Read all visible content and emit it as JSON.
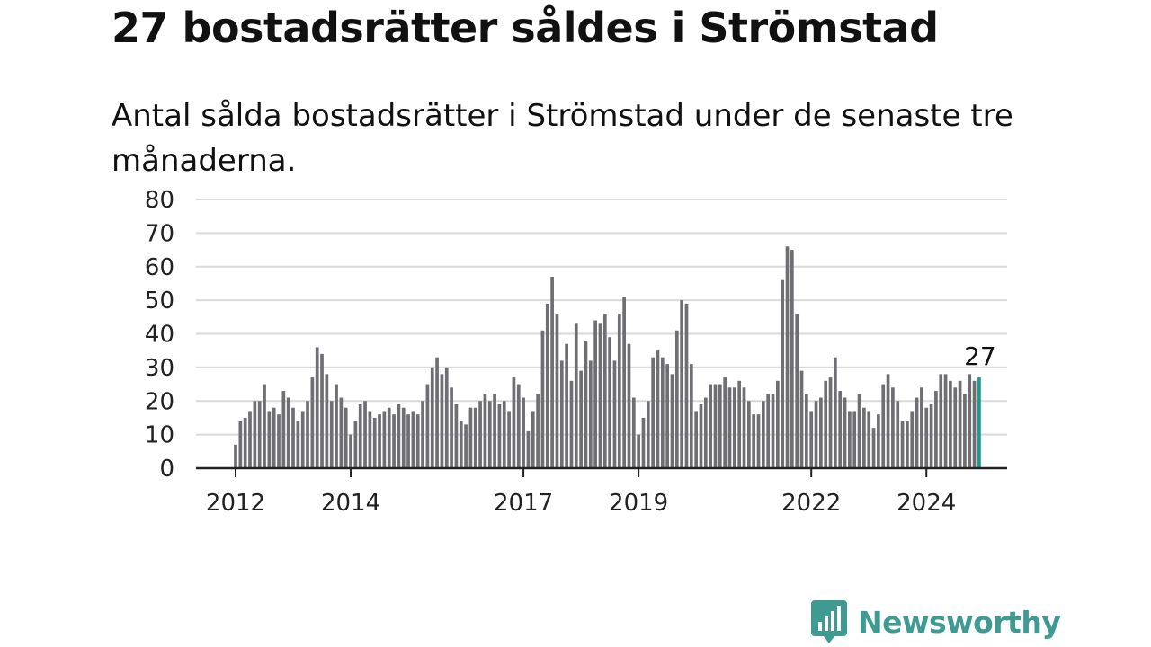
{
  "header": {
    "title": "27 bostadsrätter såldes i Strömstad",
    "subtitle": "Antal sålda bostadsrätter i Strömstad under de senaste tre månaderna."
  },
  "brand": {
    "name": "Newsworthy",
    "logo_icon": "bar-chart-speech-bubble-icon"
  },
  "colors": {
    "bar": "#6f6e73",
    "highlight": "#1a9a8f",
    "grid": "#d9d9d9",
    "axis": "#222222",
    "brand": "#3f9a92"
  },
  "chart_data": {
    "type": "bar",
    "title": "27 bostadsrätter såldes i Strömstad",
    "subtitle": "Antal sålda bostadsrätter i Strömstad under de senaste tre månaderna.",
    "xlabel": "",
    "ylabel": "",
    "ylim": [
      0,
      80
    ],
    "y_ticks": [
      0,
      10,
      20,
      30,
      40,
      50,
      60,
      70,
      80
    ],
    "grid": true,
    "x_tick_labels": [
      "2012",
      "2014",
      "2017",
      "2019",
      "2022",
      "2024"
    ],
    "x_tick_label_bar_index": [
      0,
      24,
      60,
      84,
      120,
      144
    ],
    "last_value_label": "27",
    "start": "2012-01",
    "frequency": "monthly",
    "values": [
      7,
      14,
      15,
      17,
      20,
      20,
      25,
      17,
      18,
      16,
      23,
      21,
      18,
      14,
      17,
      20,
      27,
      36,
      34,
      28,
      20,
      25,
      21,
      18,
      10,
      14,
      19,
      20,
      17,
      15,
      16,
      17,
      18,
      16,
      19,
      18,
      16,
      17,
      16,
      20,
      25,
      30,
      33,
      28,
      30,
      24,
      19,
      14,
      13,
      18,
      18,
      20,
      22,
      20,
      22,
      19,
      20,
      17,
      27,
      25,
      21,
      11,
      17,
      22,
      41,
      49,
      57,
      46,
      32,
      37,
      26,
      43,
      29,
      38,
      32,
      44,
      43,
      46,
      39,
      32,
      46,
      51,
      37,
      21,
      10,
      15,
      20,
      33,
      35,
      33,
      31,
      28,
      41,
      50,
      49,
      31,
      17,
      19,
      21,
      25,
      25,
      25,
      27,
      24,
      24,
      26,
      24,
      20,
      16,
      16,
      20,
      22,
      22,
      26,
      56,
      66,
      65,
      46,
      29,
      22,
      17,
      20,
      21,
      26,
      27,
      33,
      23,
      21,
      17,
      17,
      22,
      18,
      17,
      12,
      16,
      25,
      28,
      24,
      20,
      14,
      14,
      17,
      21,
      24,
      18,
      19,
      23,
      28,
      28,
      26,
      24,
      26,
      22,
      28,
      26,
      27
    ]
  }
}
